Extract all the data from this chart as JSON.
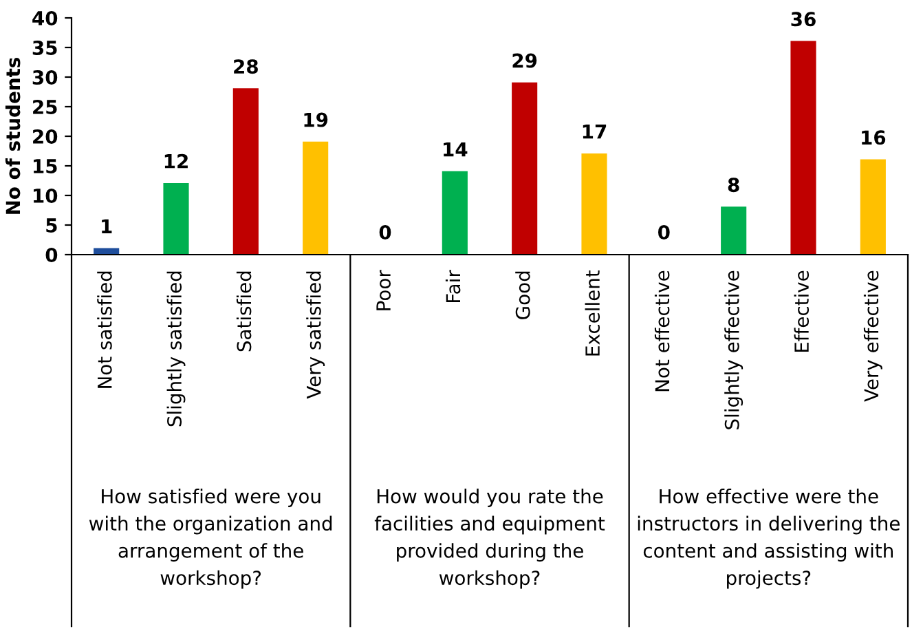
{
  "chart_data": {
    "type": "bar",
    "ylabel": "No of students",
    "categories": [
      "Not satisfied",
      "Slightly satisfied",
      "Satisfied",
      "Very satisfied",
      "Poor",
      "Fair",
      "Good",
      "Excellent",
      "Not effective",
      "Slightly effective",
      "Effective",
      "Very effective"
    ],
    "values": [
      1,
      12,
      28,
      19,
      0,
      14,
      29,
      17,
      0,
      8,
      36,
      16
    ],
    "colors": [
      "#1f4e9c",
      "#00b050",
      "#c00000",
      "#ffc000",
      "#1f4e9c",
      "#00b050",
      "#c00000",
      "#ffc000",
      "#1f4e9c",
      "#00b050",
      "#c00000",
      "#ffc000"
    ],
    "ylim": [
      0,
      40
    ],
    "yticks": [
      0,
      5,
      10,
      15,
      20,
      25,
      30,
      35,
      40
    ],
    "data_labels": true,
    "grid": false,
    "legend": false,
    "annotations": [
      "How satisfied were you\nwith the organization and\narrangement of the\nworkshop?",
      "How would you rate the\nfacilities and equipment\nprovided during the\nworkshop?",
      "How effective were the\ninstructors in delivering the\ncontent and assisting with\nprojects?"
    ]
  }
}
